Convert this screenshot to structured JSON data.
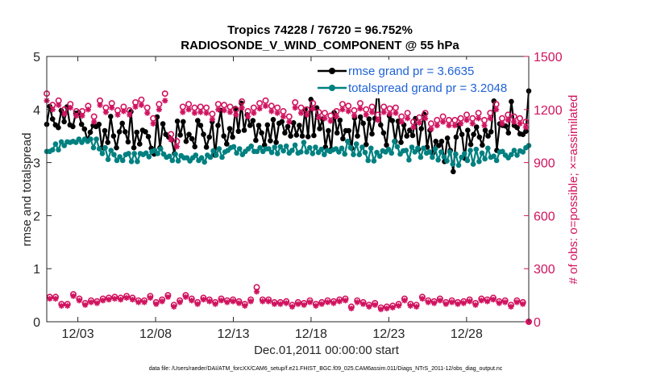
{
  "window": {
    "title_line1": "Tropics 74228 / 76720 = 96.752%",
    "title_line2": "RADIOSONDE_V_WIND_COMPONENT @ 55 hPa",
    "footer": "data file: /Users/raeder/DAI/ATM_forcXX/CAM6_setup/f.e21.FHIST_BGC.f09_025.CAM6assim.011/Diags_NTrS_2011-12/obs_diag_output.nc"
  },
  "colors": {
    "rmse": "#000000",
    "spread": "#008080",
    "obs": "#d0135f",
    "legend_text": "#1f62d6"
  },
  "chart_data": {
    "type": "line",
    "title": "Tropics 74228 / 76720 = 96.752%\nRADIOSONDE_V_WIND_COMPONENT @ 55 hPa",
    "xlabel": "Dec.01,2011 00:00:00 start",
    "ylabel": "rmse and totalspread",
    "y2label": "# of obs: o=possible; ×=assimilated",
    "xlim": [
      1.0,
      32.0
    ],
    "ylim": [
      0,
      5
    ],
    "y2lim": [
      0,
      1500
    ],
    "x_ticks": [
      3,
      8,
      13,
      18,
      23,
      28
    ],
    "x_tick_labels": [
      "12/03",
      "12/08",
      "12/13",
      "12/18",
      "12/23",
      "12/28"
    ],
    "y_ticks": [
      "0",
      "1",
      "2",
      "3",
      "4",
      "5"
    ],
    "y2_ticks": [
      "0",
      "300",
      "600",
      "900",
      "1200",
      "1500"
    ],
    "legend": {
      "position": "top-right",
      "entries": [
        "rmse grand pr = 3.6635",
        "totalspread grand pr = 3.2048"
      ]
    },
    "series": [
      {
        "name": "rmse grand pr = 3.6635",
        "axis": "left",
        "values": [
          3.72,
          4.06,
          3.82,
          3.71,
          3.66,
          3.98,
          3.77,
          4.05,
          3.71,
          3.68,
          3.93,
          3.94,
          3.72,
          3.63,
          3.43,
          3.57,
          3.7,
          3.68,
          3.72,
          3.28,
          3.6,
          3.38,
          3.87,
          3.5,
          3.28,
          3.58,
          3.74,
          3.58,
          3.39,
          3.96,
          3.28,
          3.57,
          3.35,
          3.61,
          3.58,
          3.49,
          3.27,
          3.16,
          3.86,
          3.28,
          3.73,
          3.53,
          3.48,
          3.43,
          3.17,
          3.78,
          3.52,
          3.77,
          3.4,
          3.53,
          3.45,
          3.3,
          3.79,
          3.7,
          3.53,
          3.29,
          3.48,
          3.77,
          3.14,
          3.7,
          3.98,
          3.5,
          3.35,
          3.64,
          3.48,
          4.02,
          3.59,
          4.12,
          3.61,
          3.9,
          3.7,
          3.79,
          3.42,
          3.7,
          3.56,
          3.33,
          3.71,
          3.41,
          3.81,
          3.38,
          3.74,
          3.77,
          3.56,
          3.68,
          3.5,
          3.75,
          3.52,
          3.7,
          3.5,
          4.0,
          3.49,
          4.19,
          3.51,
          4.03,
          3.64,
          3.82,
          3.29,
          3.6,
          3.25,
          3.94,
          3.56,
          3.8,
          3.45,
          3.6,
          3.6,
          3.27,
          3.84,
          3.5,
          3.86,
          3.74,
          3.34,
          3.82,
          3.54,
          3.83,
          4.45,
          3.71,
          3.56,
          3.33,
          3.88,
          3.79,
          3.4,
          3.78,
          3.38,
          3.71,
          3.5,
          3.61,
          3.51,
          3.83,
          3.25,
          3.64,
          3.91,
          3.29,
          3.61,
          3.18,
          3.4,
          3.32,
          3.4,
          3.02,
          3.46,
          3.23,
          2.83,
          3.48,
          3.71,
          3.53,
          3.08,
          3.61,
          3.34,
          3.53,
          3.67,
          3.48,
          3.33,
          3.61,
          3.5,
          3.58,
          4.16,
          3.23,
          3.73,
          3.7,
          3.69,
          3.56,
          4.15,
          3.7,
          3.66,
          3.54,
          3.53,
          3.59,
          4.35
        ]
      },
      {
        "name": "totalspread grand pr = 3.2048",
        "axis": "left",
        "values": [
          3.21,
          3.21,
          3.24,
          3.35,
          3.24,
          3.39,
          3.32,
          3.39,
          3.38,
          3.4,
          3.38,
          3.44,
          3.38,
          3.44,
          3.4,
          3.44,
          3.28,
          3.44,
          3.26,
          3.17,
          3.28,
          3.06,
          3.23,
          3.15,
          3.04,
          3.11,
          3.04,
          3.15,
          3.17,
          3.02,
          3.17,
          3.02,
          3.17,
          3.15,
          3.18,
          3.11,
          3.21,
          3.23,
          3.17,
          3.26,
          3.16,
          3.1,
          3.12,
          3.04,
          3.16,
          3.03,
          3.13,
          3.09,
          3.09,
          3.03,
          3.09,
          3.14,
          3.04,
          3.09,
          3.01,
          3.14,
          3.1,
          3.22,
          3.14,
          3.26,
          3.1,
          3.2,
          3.23,
          3.28,
          3.3,
          3.18,
          3.26,
          3.15,
          3.21,
          3.26,
          3.31,
          3.21,
          3.21,
          3.28,
          3.21,
          3.26,
          3.26,
          3.19,
          3.29,
          3.17,
          3.3,
          3.22,
          3.31,
          3.18,
          3.23,
          3.33,
          3.18,
          3.2,
          3.38,
          3.2,
          3.28,
          3.17,
          3.29,
          3.19,
          3.25,
          3.15,
          3.23,
          3.21,
          3.24,
          3.26,
          3.2,
          3.27,
          3.16,
          3.4,
          3.28,
          3.15,
          3.35,
          3.15,
          3.29,
          3.19,
          3.04,
          3.27,
          3.03,
          3.19,
          3.12,
          3.22,
          3.2,
          3.25,
          3.18,
          3.4,
          3.3,
          3.16,
          3.22,
          3.23,
          3.05,
          3.29,
          3.2,
          3.27,
          3.1,
          3.27,
          3.18,
          3.2,
          3.1,
          3.26,
          3.05,
          3.2,
          3.11,
          3.03,
          3.2,
          2.97,
          3.16,
          2.95,
          3.1,
          3.17,
          3.04,
          3.23,
          2.97,
          3.25,
          3.02,
          3.18,
          3.07,
          3.27,
          3.1,
          3.12,
          3.04,
          3.2,
          3.21,
          3.14,
          3.09,
          3.15,
          3.23,
          3.14,
          3.22,
          3.2,
          3.28,
          3.32
        ]
      },
      {
        "name": "obs possible",
        "axis": "right",
        "marker": "o",
        "values": [
          1290,
          140,
          1225,
          140,
          1250,
          100,
          1200,
          100,
          1230,
          155,
          1190,
          130,
          1190,
          105,
          1220,
          120,
          1160,
          115,
          1250,
          130,
          1210,
          135,
          1235,
          140,
          1195,
          135,
          1215,
          145,
          1195,
          135,
          1240,
          120,
          1255,
          120,
          1210,
          145,
          1150,
          110,
          1230,
          125,
          1290,
          150,
          1060,
          95,
          1020,
          120,
          1215,
          150,
          1230,
          130,
          1210,
          110,
          1215,
          135,
          1210,
          125,
          1175,
          110,
          1230,
          130,
          1225,
          120,
          1215,
          125,
          1200,
          115,
          1245,
          100,
          1190,
          125,
          1210,
          195,
          1235,
          125,
          1250,
          125,
          1220,
          110,
          1210,
          110,
          1190,
          115,
          1160,
          95,
          1240,
          110,
          1210,
          105,
          1200,
          120,
          1235,
          100,
          1185,
          110,
          1180,
          120,
          1165,
          115,
          1190,
          125,
          1230,
          130,
          1220,
          85,
          1195,
          120,
          1235,
          110,
          1200,
          95,
          1215,
          105,
          1170,
          80,
          1215,
          85,
          1205,
          90,
          1210,
          100,
          1160,
          130,
          1180,
          100,
          1130,
          95,
          1155,
          140,
          1180,
          120,
          1120,
          115,
          1140,
          130,
          1160,
          110,
          1140,
          120,
          1140,
          110,
          1150,
          115,
          1170,
          125,
          1150,
          105,
          1180,
          130,
          1140,
          125,
          1180,
          135,
          1230,
          115,
          1150,
          120,
          1170,
          95,
          1160,
          120,
          1150,
          110,
          1130,
          0
        ]
      },
      {
        "name": "obs assimilated",
        "axis": "right",
        "marker": "x",
        "values": [
          1250,
          130,
          1200,
          130,
          1225,
          90,
          1175,
          90,
          1210,
          145,
          1165,
          120,
          1165,
          95,
          1200,
          110,
          1130,
          105,
          1225,
          120,
          1185,
          125,
          1210,
          130,
          1170,
          125,
          1190,
          135,
          1170,
          125,
          1215,
          110,
          1225,
          110,
          1180,
          135,
          1120,
          100,
          1200,
          115,
          1250,
          140,
          1030,
          85,
          990,
          110,
          1185,
          140,
          1200,
          120,
          1180,
          100,
          1185,
          125,
          1180,
          115,
          1145,
          100,
          1200,
          120,
          1195,
          110,
          1185,
          115,
          1170,
          105,
          1210,
          90,
          1160,
          115,
          1180,
          170,
          1205,
          115,
          1220,
          115,
          1190,
          100,
          1180,
          100,
          1160,
          105,
          1130,
          85,
          1210,
          100,
          1180,
          95,
          1170,
          110,
          1205,
          90,
          1155,
          100,
          1150,
          110,
          1135,
          105,
          1160,
          115,
          1200,
          120,
          1190,
          75,
          1165,
          110,
          1205,
          100,
          1170,
          85,
          1185,
          95,
          1140,
          70,
          1185,
          75,
          1175,
          80,
          1180,
          90,
          1130,
          120,
          1150,
          90,
          1100,
          85,
          1125,
          130,
          1150,
          110,
          1090,
          105,
          1110,
          120,
          1130,
          100,
          1110,
          110,
          1110,
          100,
          1120,
          105,
          1140,
          115,
          1120,
          95,
          1150,
          120,
          1110,
          115,
          1150,
          125,
          1200,
          105,
          1120,
          110,
          1140,
          85,
          1130,
          110,
          1120,
          100,
          1100,
          0
        ]
      }
    ]
  }
}
